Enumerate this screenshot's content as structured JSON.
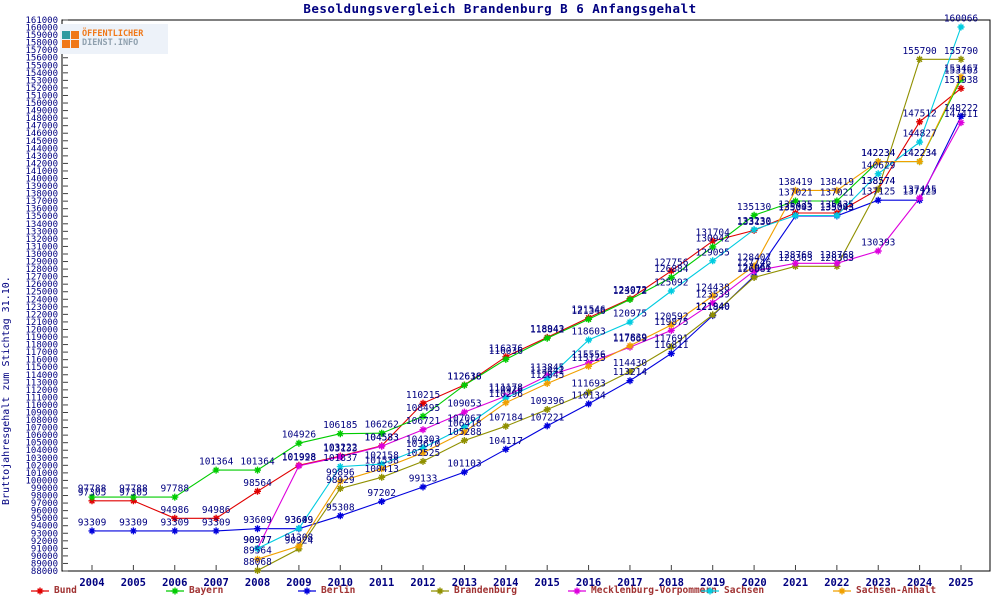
{
  "logo": {
    "line1": "ÖFFENTLICHER",
    "line2": "DIENST.INFO"
  },
  "title": "Besoldungsvergleich Brandenburg B 6 Anfangsgehalt",
  "ylabel": "Bruttojahresgehalt zum Stichtag 31.10.",
  "label_color": "#000080",
  "axis_color": "#404040",
  "chart_data": {
    "type": "line",
    "x": [
      2004,
      2005,
      2006,
      2007,
      2008,
      2009,
      2010,
      2011,
      2012,
      2013,
      2014,
      2015,
      2016,
      2017,
      2018,
      2019,
      2020,
      2021,
      2022,
      2023,
      2024,
      2025
    ],
    "ylim": [
      88000,
      161000
    ],
    "ytick_step": 1000,
    "grid": false,
    "legend_position": "bottom",
    "series": [
      {
        "name": "Bund",
        "color": "#e00000",
        "values": [
          97305,
          97305,
          94986,
          94986,
          98564,
          101998,
          103222,
          104583,
          110215,
          112638,
          116376,
          118943,
          121546,
          124072,
          127756,
          131704,
          133130,
          135435,
          135435,
          138574,
          147512,
          151938
        ]
      },
      {
        "name": "Bayern",
        "color": "#00cc00",
        "values": [
          97788,
          97788,
          97788,
          101364,
          101364,
          104926,
          106185,
          106262,
          108495,
          112616,
          116036,
          118842,
          121346,
          123972,
          126884,
          130942,
          135130,
          137021,
          137021,
          142234,
          142234,
          153163
        ]
      },
      {
        "name": "Berlin",
        "color": "#0000dd",
        "values": [
          93309,
          93309,
          93309,
          93309,
          93609,
          93609,
          95308,
          97202,
          99133,
          101103,
          104117,
          107221,
          110134,
          113214,
          116811,
          121840,
          127066,
          135043,
          135043,
          137125,
          137125,
          148222
        ]
      },
      {
        "name": "Brandenburg",
        "color": "#909000",
        "values": [
          null,
          null,
          null,
          null,
          88068,
          90924,
          98929,
          100413,
          102525,
          105288,
          107184,
          109396,
          111693,
          114430,
          117691,
          121940,
          126881,
          128363,
          128363,
          138574,
          155790,
          155790
        ]
      },
      {
        "name": "Mecklenburg-Vorpommern",
        "color": "#dd00dd",
        "values": [
          null,
          null,
          null,
          null,
          90977,
          101928,
          103133,
          104533,
          106721,
          109053,
          111178,
          113845,
          115556,
          117669,
          119875,
          123539,
          127746,
          128768,
          128768,
          130393,
          137415,
          147411
        ]
      },
      {
        "name": "Sachsen",
        "color": "#00cce0",
        "values": [
          null,
          null,
          null,
          null,
          90977,
          93649,
          101837,
          102158,
          104303,
          107067,
          110926,
          113441,
          118603,
          120975,
          125092,
          129095,
          133230,
          135093,
          135093,
          140629,
          144827,
          160066
        ]
      },
      {
        "name": "Sachsen-Anhalt",
        "color": "#f0a000",
        "values": [
          null,
          null,
          null,
          null,
          89564,
          91308,
          99896,
          101538,
          103670,
          106418,
          110296,
          112845,
          115125,
          117839,
          120592,
          124438,
          128407,
          138419,
          138419,
          142234,
          142234,
          153467
        ]
      }
    ]
  }
}
